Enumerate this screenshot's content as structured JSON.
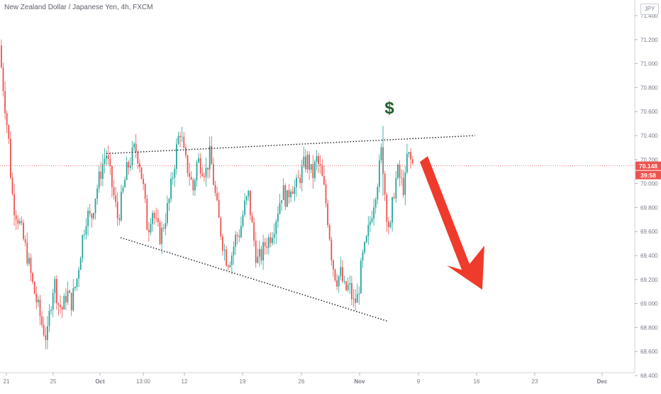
{
  "header": {
    "title": "New Zealand Dollar / Japanese Yen, 4h, FXCM",
    "currency_badge": "JPY"
  },
  "price_labels": {
    "last_price": "70.148",
    "countdown": "39:58"
  },
  "annotation": {
    "dollar_symbol": "$"
  },
  "colors": {
    "up": "#26a69a",
    "down": "#ef5350",
    "arrow": "#ef3b2c",
    "dollar": "#1e5e2a",
    "axis_text": "#787b86",
    "price_line": "#ef5350"
  },
  "chart_data": {
    "type": "candlestick",
    "title": "New Zealand Dollar / Japanese Yen, 4h, FXCM",
    "ylim": [
      68.4,
      71.5
    ],
    "y_ticks": [
      71.4,
      71.2,
      71.0,
      70.8,
      70.6,
      70.4,
      70.2,
      70.0,
      69.8,
      69.6,
      69.4,
      69.2,
      69.0,
      68.8,
      68.6,
      68.4
    ],
    "y_tick_labels": [
      "71.400",
      "71.200",
      "71.000",
      "70.800",
      "70.600",
      "70.400",
      "70.200",
      "70.000",
      "69.800",
      "69.600",
      "69.400",
      "69.200",
      "69.000",
      "68.800",
      "68.600",
      "68.400"
    ],
    "x_tick_labels": [
      "21",
      "25",
      "Oct",
      "13:00",
      "12",
      "19",
      "26",
      "Nov",
      "9",
      "16",
      "23",
      "Dec"
    ],
    "last_price": 70.148,
    "path": [
      [
        0,
        71.15
      ],
      [
        4,
        70.95
      ],
      [
        8,
        70.7
      ],
      [
        14,
        70.35
      ],
      [
        18,
        69.95
      ],
      [
        22,
        69.8
      ],
      [
        28,
        69.7
      ],
      [
        34,
        69.55
      ],
      [
        40,
        69.4
      ],
      [
        48,
        69.15
      ],
      [
        56,
        68.95
      ],
      [
        62,
        68.8
      ],
      [
        68,
        68.7
      ],
      [
        72,
        68.95
      ],
      [
        78,
        69.2
      ],
      [
        84,
        69.0
      ],
      [
        90,
        68.95
      ],
      [
        96,
        69.1
      ],
      [
        102,
        69.0
      ],
      [
        110,
        69.2
      ],
      [
        118,
        69.55
      ],
      [
        124,
        69.75
      ],
      [
        130,
        69.7
      ],
      [
        136,
        69.9
      ],
      [
        142,
        70.05
      ],
      [
        148,
        70.2
      ],
      [
        152,
        70.25
      ],
      [
        156,
        70.1
      ],
      [
        162,
        69.9
      ],
      [
        168,
        69.7
      ],
      [
        174,
        69.9
      ],
      [
        180,
        70.1
      ],
      [
        186,
        70.2
      ],
      [
        192,
        70.3
      ],
      [
        198,
        70.2
      ],
      [
        204,
        69.95
      ],
      [
        210,
        69.6
      ],
      [
        216,
        69.8
      ],
      [
        222,
        69.65
      ],
      [
        228,
        69.55
      ],
      [
        234,
        69.7
      ],
      [
        240,
        69.85
      ],
      [
        246,
        70.1
      ],
      [
        252,
        70.35
      ],
      [
        256,
        70.45
      ],
      [
        262,
        70.2
      ],
      [
        268,
        70.1
      ],
      [
        274,
        69.95
      ],
      [
        280,
        70.2
      ],
      [
        286,
        70.15
      ],
      [
        292,
        70.1
      ],
      [
        298,
        70.25
      ],
      [
        304,
        69.95
      ],
      [
        310,
        69.7
      ],
      [
        316,
        69.5
      ],
      [
        322,
        69.35
      ],
      [
        328,
        69.4
      ],
      [
        334,
        69.55
      ],
      [
        340,
        69.6
      ],
      [
        346,
        69.8
      ],
      [
        352,
        69.9
      ],
      [
        358,
        69.6
      ],
      [
        364,
        69.35
      ],
      [
        370,
        69.4
      ],
      [
        376,
        69.5
      ],
      [
        382,
        69.55
      ],
      [
        388,
        69.65
      ],
      [
        394,
        69.8
      ],
      [
        400,
        69.95
      ],
      [
        406,
        69.85
      ],
      [
        412,
        70.0
      ],
      [
        418,
        69.95
      ],
      [
        424,
        70.05
      ],
      [
        430,
        70.15
      ],
      [
        436,
        70.2
      ],
      [
        442,
        70.05
      ],
      [
        448,
        70.2
      ],
      [
        454,
        70.1
      ],
      [
        460,
        69.9
      ],
      [
        466,
        69.6
      ],
      [
        470,
        69.35
      ],
      [
        476,
        69.2
      ],
      [
        482,
        69.25
      ],
      [
        488,
        69.1
      ],
      [
        494,
        69.15
      ],
      [
        500,
        69.0
      ],
      [
        506,
        69.05
      ],
      [
        512,
        69.35
      ],
      [
        518,
        69.5
      ],
      [
        524,
        69.7
      ],
      [
        530,
        69.9
      ],
      [
        536,
        70.1
      ],
      [
        540,
        70.3
      ],
      [
        544,
        69.95
      ],
      [
        548,
        69.7
      ],
      [
        552,
        69.6
      ],
      [
        556,
        69.9
      ],
      [
        562,
        70.1
      ],
      [
        568,
        70.0
      ],
      [
        572,
        69.95
      ],
      [
        576,
        70.25
      ],
      [
        580,
        70.2
      ],
      [
        584,
        70.15
      ]
    ],
    "annotations": {
      "upper_trendline": {
        "from": [
          150,
          70.25
        ],
        "to": [
          670,
          70.4
        ]
      },
      "lower_trendline": {
        "from": [
          170,
          69.55
        ],
        "to": [
          548,
          68.85
        ]
      },
      "arrow": "down",
      "dollar_marker": "$"
    }
  }
}
